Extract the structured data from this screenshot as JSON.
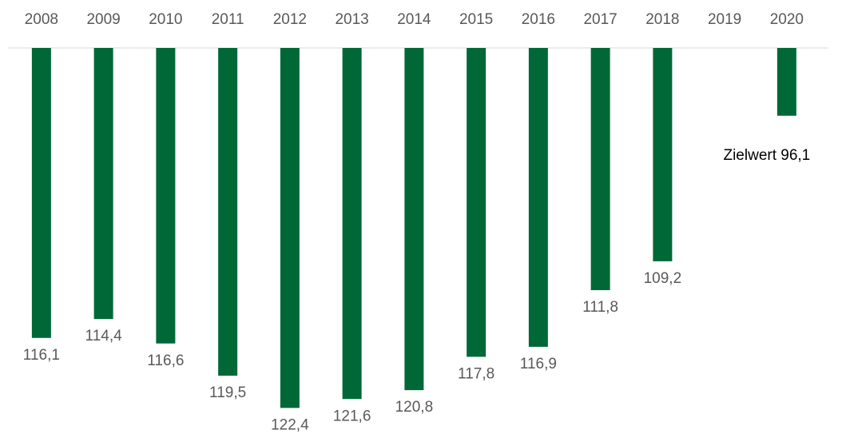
{
  "chart_data": {
    "type": "bar",
    "categories": [
      "2008",
      "2009",
      "2010",
      "2011",
      "2012",
      "2013",
      "2014",
      "2015",
      "2016",
      "2017",
      "2018",
      "2019",
      "2020"
    ],
    "values": [
      116.1,
      114.4,
      116.6,
      119.5,
      122.4,
      121.6,
      120.8,
      117.8,
      116.9,
      111.8,
      109.2,
      null,
      96.1
    ],
    "value_labels": [
      "116,1",
      "114,4",
      "116,6",
      "119,5",
      "122,4",
      "121,6",
      "120,8",
      "117,8",
      "116,9",
      "111,8",
      "109,2",
      null,
      "Zielwert 96,1"
    ],
    "color": "#006837",
    "ylim": [
      90,
      125
    ],
    "y_inverted": true,
    "grid": false
  }
}
